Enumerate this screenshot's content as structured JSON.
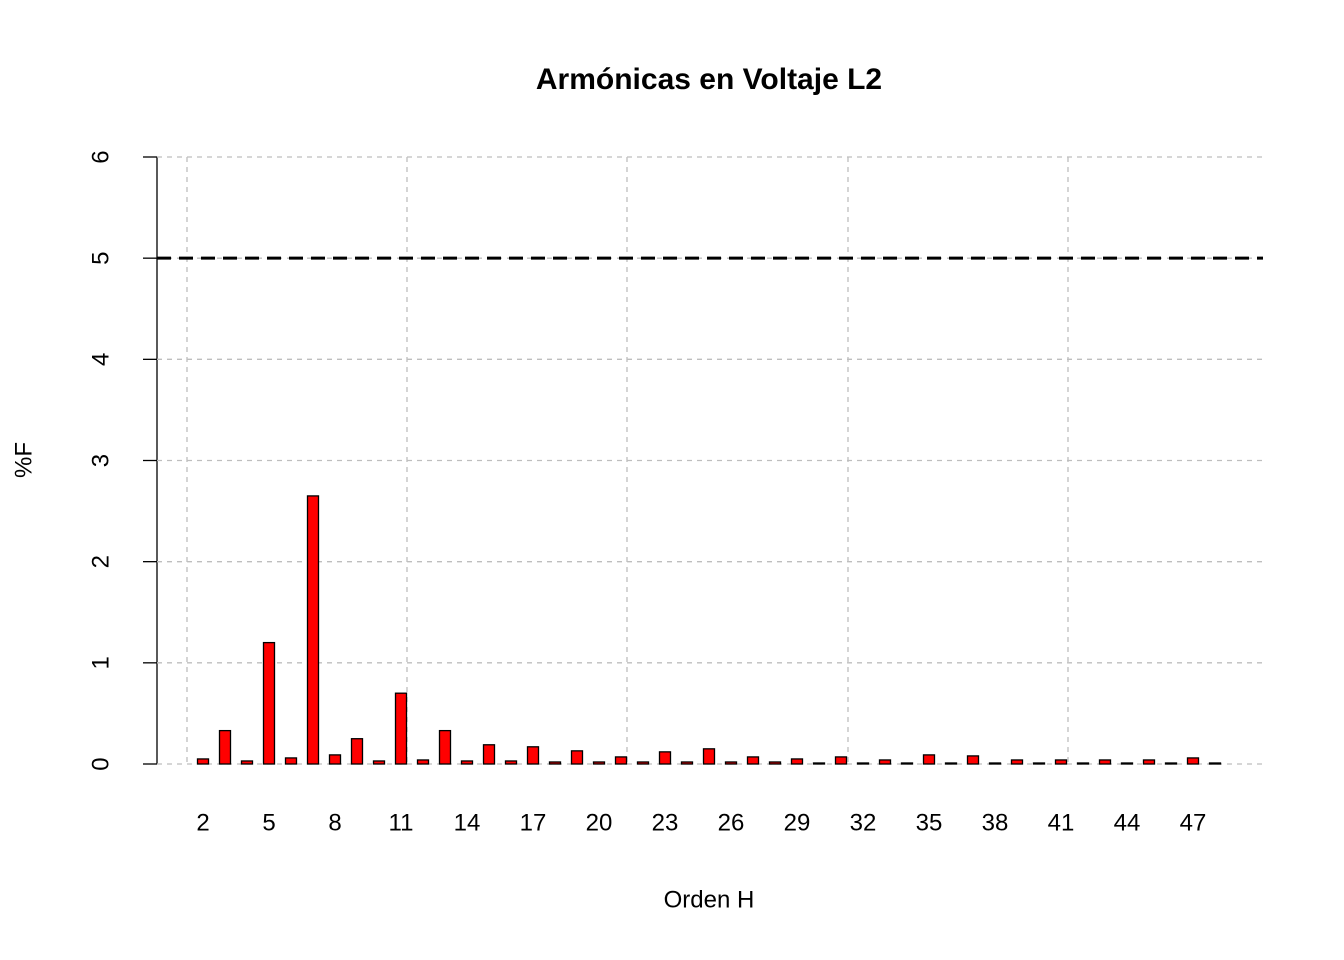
{
  "chart_data": {
    "type": "bar",
    "title": "Armónicas en Voltaje L2",
    "x_label": "Orden H",
    "y_label": "%F",
    "categories": [
      "2",
      null,
      null,
      "5",
      null,
      null,
      "8",
      null,
      null,
      "11",
      null,
      null,
      "14",
      null,
      null,
      "17",
      null,
      null,
      "20",
      null,
      null,
      "23",
      null,
      null,
      "26",
      null,
      null,
      "29",
      null,
      null,
      "32",
      null,
      null,
      "35",
      null,
      null,
      "38",
      null,
      null,
      "41",
      null,
      null,
      "44",
      null,
      null,
      "47",
      null
    ],
    "values": [
      0.05,
      0.33,
      0.03,
      1.2,
      0.06,
      2.65,
      0.09,
      0.25,
      0.03,
      0.7,
      0.04,
      0.33,
      0.03,
      0.19,
      0.03,
      0.17,
      0.02,
      0.13,
      0.02,
      0.07,
      0.02,
      0.12,
      0.02,
      0.15,
      0.02,
      0.07,
      0.02,
      0.05,
      0.01,
      0.07,
      0.01,
      0.04,
      0.01,
      0.09,
      0.01,
      0.08,
      0.01,
      0.04,
      0.01,
      0.04,
      0.01,
      0.04,
      0.01,
      0.04,
      0.01,
      0.06,
      0.01
    ],
    "color": "#ff0000",
    "ylim": [
      0,
      6
    ],
    "yticks": [
      0,
      1,
      2,
      3,
      4,
      5,
      6
    ],
    "grid": true,
    "hline": 5
  }
}
